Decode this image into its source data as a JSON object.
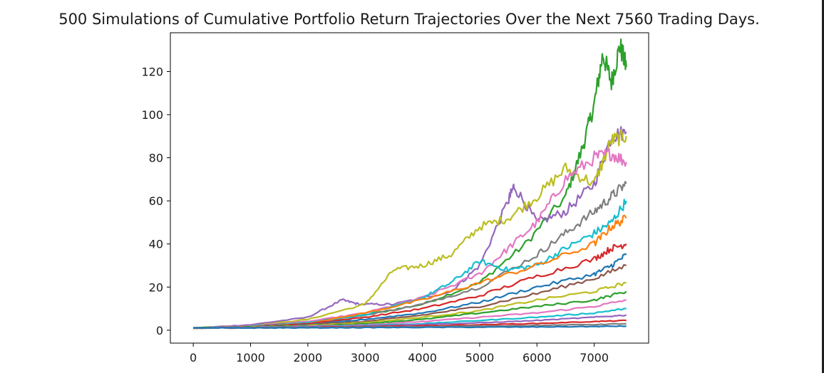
{
  "chart_data": {
    "type": "line",
    "title": "500 Simulations of Cumulative Portfolio Return Trajectories Over the Next 7560 Trading Days.",
    "xlabel": "",
    "ylabel": "",
    "xlim": [
      -400,
      7950
    ],
    "ylim": [
      -6,
      138
    ],
    "x_ticks": [
      0,
      1000,
      2000,
      3000,
      4000,
      5000,
      6000,
      7000
    ],
    "y_ticks": [
      0,
      20,
      40,
      60,
      80,
      100,
      120
    ],
    "x_tick_labels": [
      "0",
      "1000",
      "2000",
      "3000",
      "4000",
      "5000",
      "6000",
      "7000"
    ],
    "y_tick_labels": [
      "0",
      "20",
      "40",
      "60",
      "80",
      "100",
      "120"
    ],
    "grid": false,
    "legend": "none",
    "n_simulations_shown": 500,
    "series": [
      {
        "color": "#2ca02c",
        "x": [
          0,
          1000,
          2000,
          3000,
          4000,
          5000,
          5800,
          6500,
          6800,
          7000,
          7150,
          7300,
          7450,
          7560
        ],
        "y": [
          1,
          2.2,
          4,
          7,
          12,
          22,
          40,
          62,
          85,
          105,
          128,
          115,
          132,
          122
        ]
      },
      {
        "color": "#9467bd",
        "x": [
          0,
          1000,
          2000,
          2600,
          2900,
          3500,
          4500,
          5000,
          5500,
          5600,
          6000,
          6500,
          7000,
          7300,
          7560
        ],
        "y": [
          1,
          2.5,
          6,
          14,
          12,
          12,
          18,
          30,
          60,
          67,
          50,
          55,
          68,
          90,
          92
        ]
      },
      {
        "color": "#bcbd22",
        "x": [
          0,
          1000,
          2000,
          3000,
          3500,
          4000,
          4500,
          5000,
          5500,
          6000,
          6500,
          7000,
          7300,
          7560
        ],
        "y": [
          1,
          2,
          5,
          12,
          28,
          30,
          35,
          48,
          52,
          62,
          75,
          68,
          88,
          90
        ]
      },
      {
        "color": "#e377c2",
        "x": [
          0,
          1000,
          2000,
          3000,
          4000,
          5000,
          5500,
          6000,
          6500,
          7000,
          7300,
          7560
        ],
        "y": [
          1,
          2,
          4,
          8,
          15,
          26,
          38,
          50,
          70,
          80,
          82,
          78
        ]
      },
      {
        "color": "#7f7f7f",
        "x": [
          0,
          1000,
          2000,
          3000,
          4000,
          5000,
          6000,
          6500,
          7000,
          7300,
          7560
        ],
        "y": [
          1,
          1.8,
          3.5,
          7,
          12,
          20,
          35,
          45,
          55,
          62,
          68
        ]
      },
      {
        "color": "#17becf",
        "x": [
          0,
          1000,
          2000,
          3000,
          4000,
          4500,
          5000,
          5500,
          6000,
          6500,
          7000,
          7300,
          7560
        ],
        "y": [
          1,
          1.8,
          3.5,
          7,
          15,
          22,
          32,
          28,
          30,
          38,
          45,
          50,
          60
        ]
      },
      {
        "color": "#ff7f0e",
        "x": [
          0,
          1000,
          2000,
          3000,
          4000,
          5000,
          6000,
          7000,
          7300,
          7560
        ],
        "y": [
          1,
          1.6,
          3,
          8,
          14,
          22,
          30,
          40,
          48,
          52
        ]
      },
      {
        "color": "#d62728",
        "x": [
          0,
          1000,
          2000,
          3000,
          4000,
          5000,
          6000,
          7000,
          7300,
          7560
        ],
        "y": [
          1,
          1.6,
          3,
          6,
          10,
          16,
          25,
          33,
          38,
          40
        ]
      },
      {
        "color": "#1f77b4",
        "x": [
          0,
          1000,
          2000,
          3000,
          4000,
          5000,
          6000,
          7000,
          7300,
          7560
        ],
        "y": [
          1,
          1.5,
          2.5,
          5,
          8,
          13,
          20,
          26,
          30,
          35
        ]
      },
      {
        "color": "#8c564b",
        "x": [
          0,
          1000,
          2000,
          3000,
          4000,
          5000,
          6000,
          7000,
          7560
        ],
        "y": [
          1,
          1.5,
          2.5,
          4,
          7,
          11,
          17,
          24,
          30
        ]
      },
      {
        "color": "#bcbd22",
        "x": [
          0,
          1000,
          2000,
          3000,
          4000,
          5000,
          6000,
          7000,
          7560
        ],
        "y": [
          1,
          1.4,
          2.2,
          3.5,
          6,
          9,
          14,
          18,
          22
        ]
      },
      {
        "color": "#2ca02c",
        "x": [
          0,
          1000,
          2000,
          3000,
          4000,
          5000,
          6000,
          7000,
          7560
        ],
        "y": [
          1,
          1.4,
          2,
          3,
          5,
          8,
          11,
          14,
          18
        ]
      },
      {
        "color": "#e377c2",
        "x": [
          0,
          1000,
          2000,
          3000,
          4000,
          5000,
          6000,
          7000,
          7560
        ],
        "y": [
          1,
          1.3,
          1.8,
          2.5,
          4,
          6,
          8,
          11,
          14
        ]
      },
      {
        "color": "#17becf",
        "x": [
          0,
          1000,
          2000,
          3000,
          4000,
          5000,
          6000,
          7000,
          7560
        ],
        "y": [
          1,
          1.2,
          1.6,
          2.2,
          3,
          4.5,
          6,
          8,
          10
        ]
      },
      {
        "color": "#9467bd",
        "x": [
          0,
          1000,
          2000,
          3000,
          4000,
          5000,
          6000,
          7000,
          7560
        ],
        "y": [
          1,
          1.2,
          1.5,
          2,
          2.6,
          3.4,
          4.5,
          6,
          7
        ]
      },
      {
        "color": "#d62728",
        "x": [
          0,
          1000,
          2000,
          3000,
          4000,
          5000,
          6000,
          7000,
          7560
        ],
        "y": [
          1,
          1.1,
          1.3,
          1.6,
          2,
          2.5,
          3.1,
          4,
          4.5
        ]
      },
      {
        "color": "#7f7f7f",
        "x": [
          0,
          1000,
          2000,
          3000,
          4000,
          5000,
          6000,
          7000,
          7560
        ],
        "y": [
          1,
          1.1,
          1.2,
          1.4,
          1.6,
          1.9,
          2.2,
          2.6,
          3
        ]
      },
      {
        "color": "#1f77b4",
        "x": [
          0,
          1000,
          2000,
          3000,
          4000,
          5000,
          6000,
          7000,
          7560
        ],
        "y": [
          1,
          1.05,
          1.1,
          1.2,
          1.3,
          1.4,
          1.5,
          1.7,
          1.9
        ]
      }
    ]
  }
}
